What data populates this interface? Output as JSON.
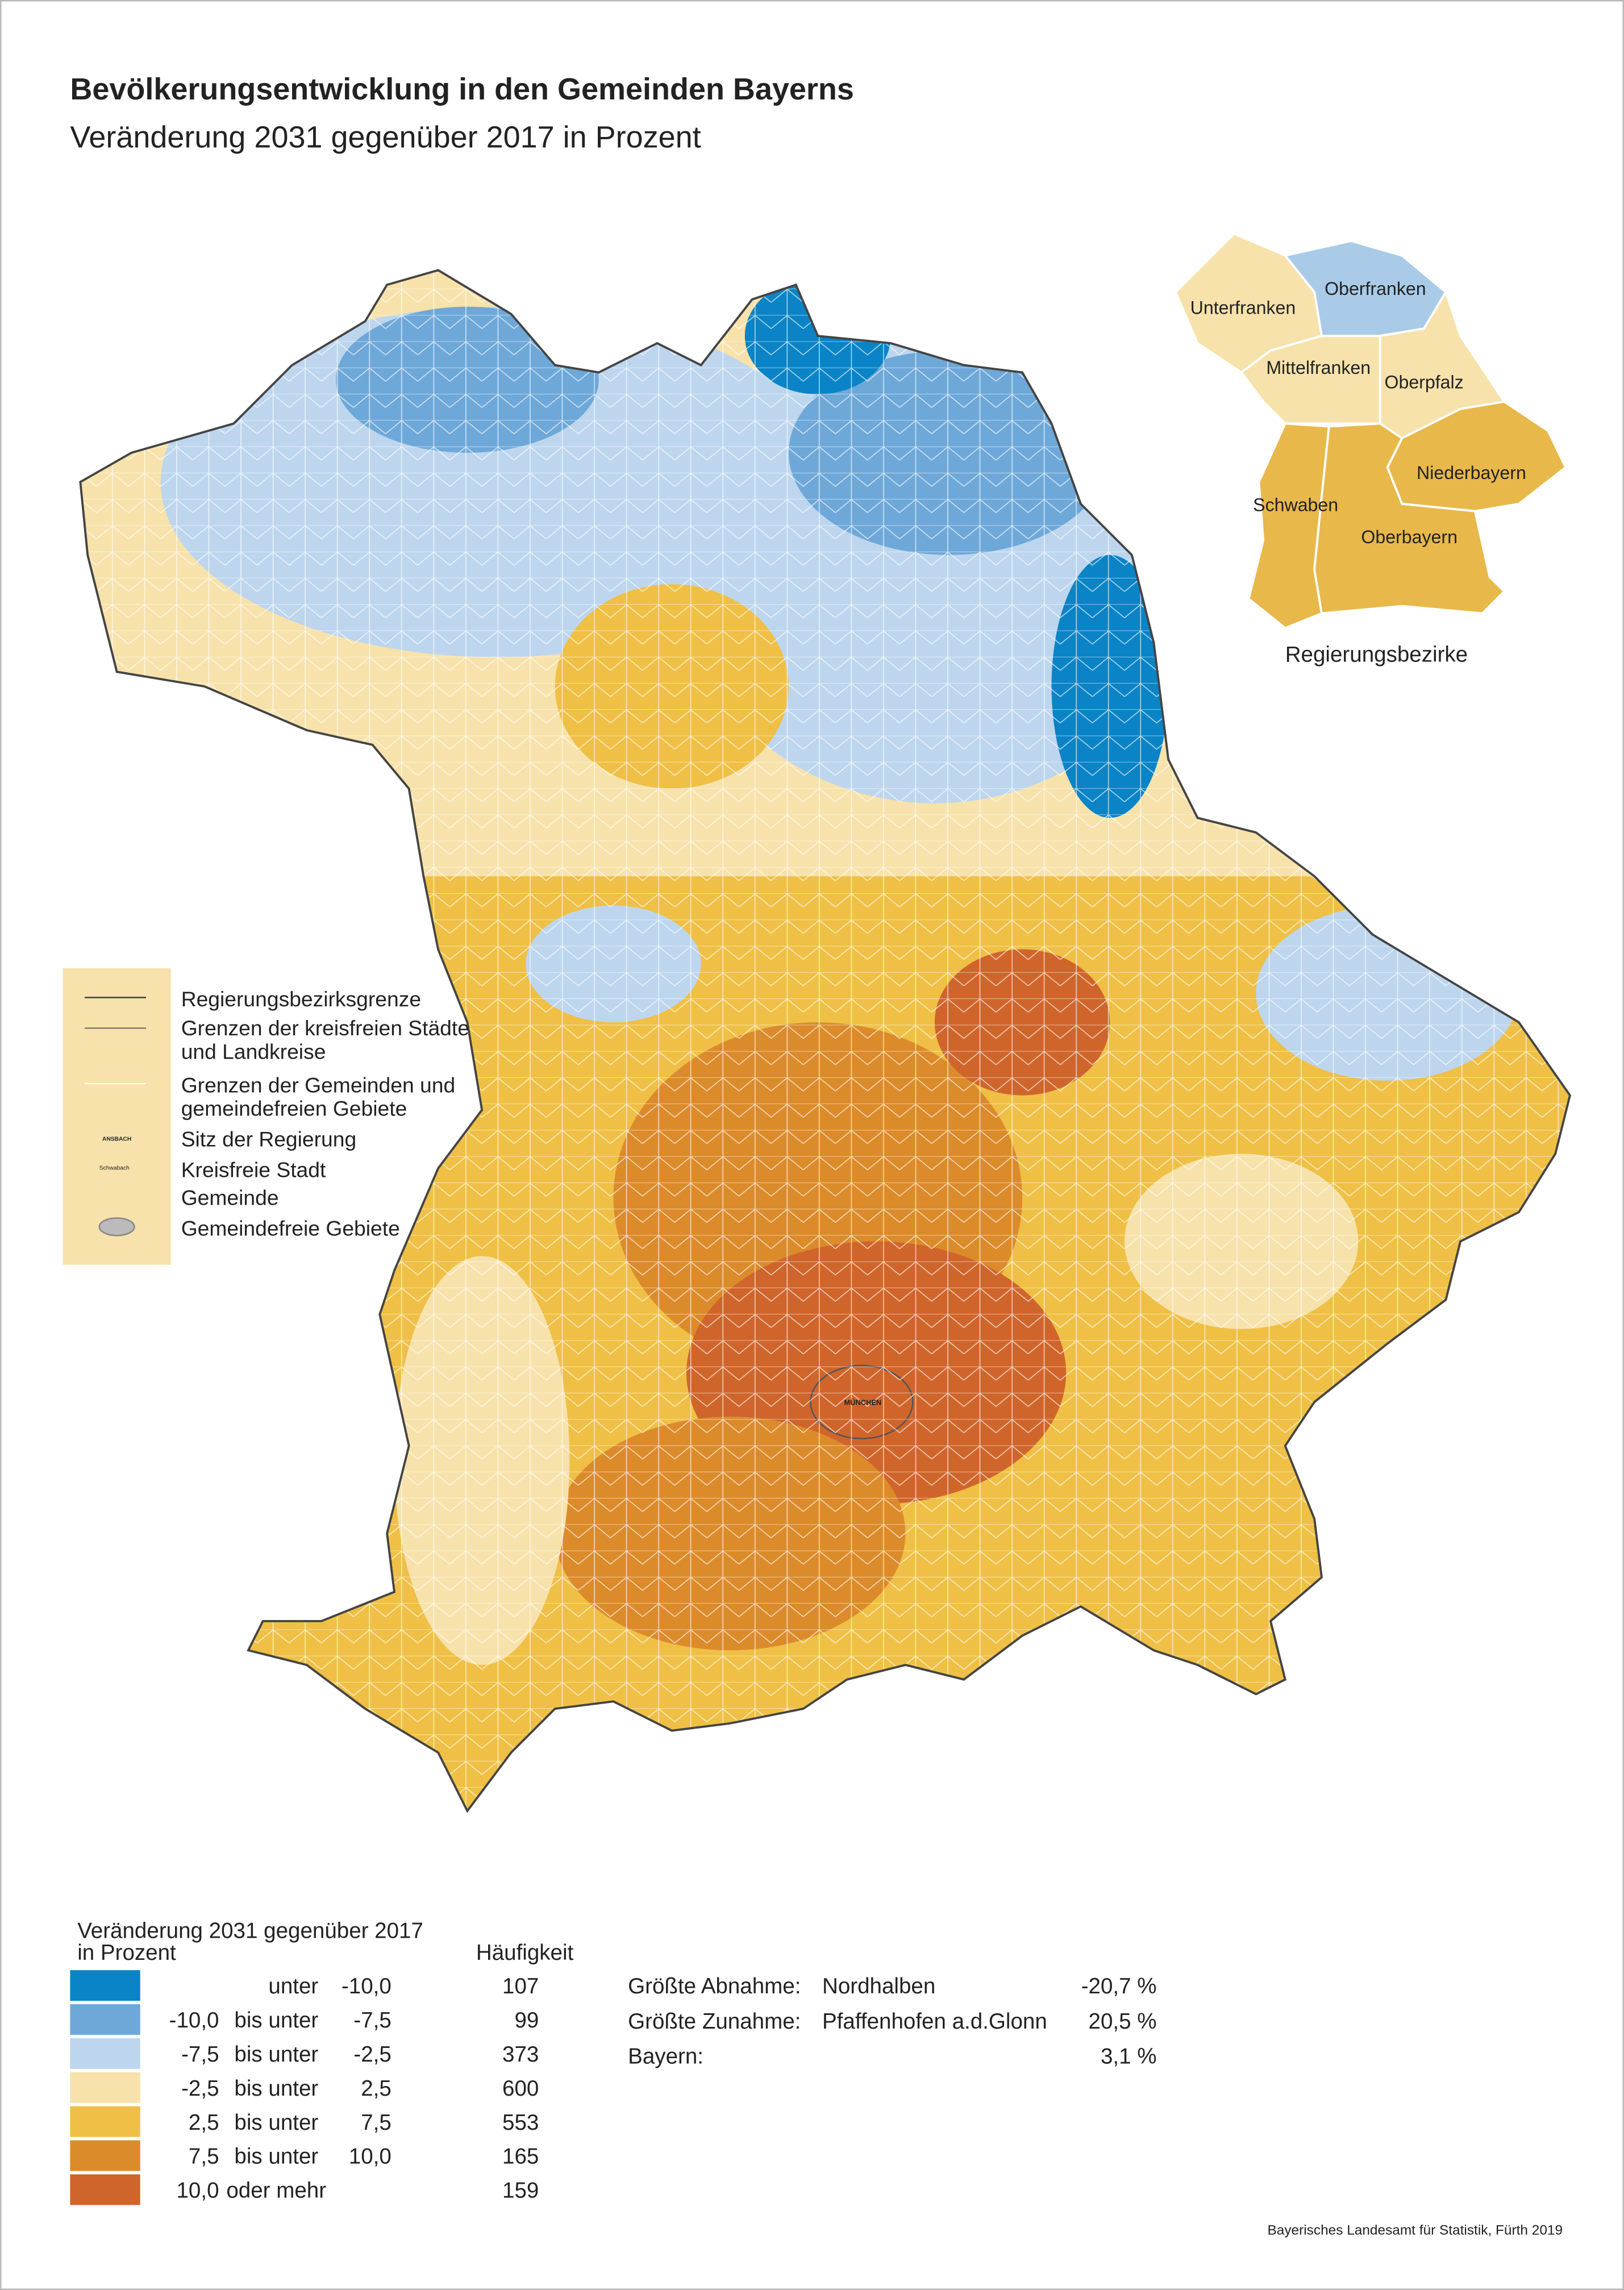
{
  "header": {
    "title": "Bevölkerungsentwicklung in den Gemeinden Bayerns",
    "subtitle": "Veränderung 2031 gegenüber 2017 in Prozent"
  },
  "inset": {
    "regions": [
      "Unterfranken",
      "Oberfranken",
      "Mittelfranken",
      "Oberpfalz",
      "Niederbayern",
      "Schwaben",
      "Oberbayern"
    ],
    "caption": "Regierungsbezirke"
  },
  "map_legend": [
    "Regierungsbezirksgrenze",
    "Grenzen der kreisfreien Städte",
    "und Landkreise",
    "Grenzen der Gemeinden und",
    "gemeindefreien Gebiete",
    "Sitz der Regierung",
    "Kreisfreie Stadt",
    "Gemeinde",
    "Gemeindefreie Gebiete"
  ],
  "classes": {
    "heading": [
      "Veränderung 2031 gegenüber 2017",
      "in Prozent"
    ],
    "count_heading": "Häufigkeit",
    "rows": [
      {
        "op": "unter",
        "to": "-10,0",
        "count": "107",
        "color": "#0a84c6"
      },
      {
        "from": "-10,0",
        "op": "bis unter",
        "to": "-7,5",
        "count": "99",
        "color": "#6ea8d9"
      },
      {
        "from": "-7,5",
        "op": "bis unter",
        "to": "-2,5",
        "count": "373",
        "color": "#bdd6ee"
      },
      {
        "from": "-2,5",
        "op": "bis unter",
        "to": "2,5",
        "count": "600",
        "color": "#f7e2ab"
      },
      {
        "from": "2,5",
        "op": "bis unter",
        "to": "7,5",
        "count": "553",
        "color": "#efc045"
      },
      {
        "from": "7,5",
        "op": "bis unter",
        "to": "10,0",
        "count": "165",
        "color": "#dc8b2b"
      },
      {
        "from": "10,0",
        "op": "oder mehr",
        "count": "159",
        "color": "#d0652b"
      }
    ]
  },
  "extremes": [
    {
      "label": "Größte Abnahme:",
      "name": "Nordhalben",
      "value": "-20,7 %"
    },
    {
      "label": "Größte Zunahme:",
      "name": "Pfaffenhofen a.d.Glonn",
      "value": "20,5 %"
    },
    {
      "label": "Bayern:",
      "value": "3,1 %"
    }
  ],
  "source": "Bayerisches Landesamt für Statistik, Fürth 2019"
}
